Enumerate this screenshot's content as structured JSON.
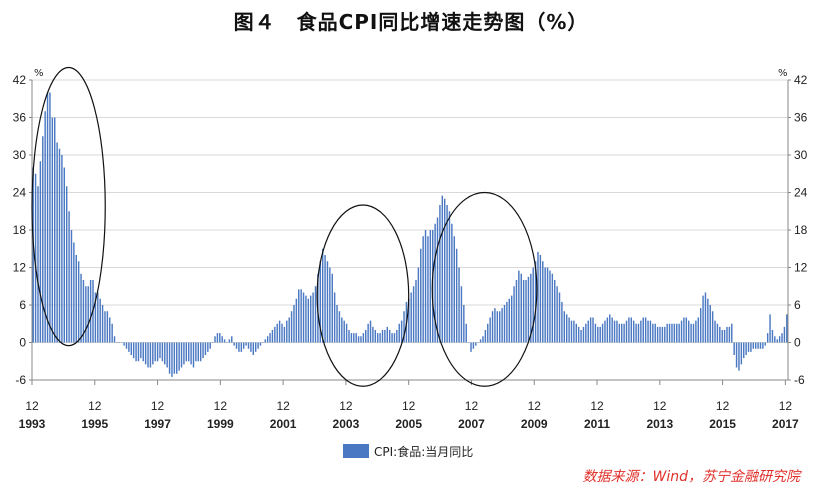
{
  "title": "图４　食品CPI同比增速走势图（%）",
  "source_note": "数据来源：Wind，苏宁金融研究院",
  "colors": {
    "bar": "#4a78c2",
    "axis": "#888888",
    "grid": "#d9d9d9",
    "ellipse": "#111111",
    "source": "#e0302a"
  },
  "chart_data": {
    "type": "bar",
    "unit_label": "%",
    "legend": [
      "CPI:食品:当月同比"
    ],
    "legend_position": "bottom-center",
    "ylim": [
      -6,
      42
    ],
    "y_ticks": [
      -6,
      0,
      6,
      12,
      18,
      24,
      30,
      36,
      42
    ],
    "x_ticks": [
      {
        "month": "12",
        "year": "1993"
      },
      {
        "month": "12",
        "year": "1995"
      },
      {
        "month": "12",
        "year": "1997"
      },
      {
        "month": "12",
        "year": "1999"
      },
      {
        "month": "12",
        "year": "2001"
      },
      {
        "month": "12",
        "year": "2003"
      },
      {
        "month": "12",
        "year": "2005"
      },
      {
        "month": "12",
        "year": "2007"
      },
      {
        "month": "12",
        "year": "2009"
      },
      {
        "month": "12",
        "year": "2011"
      },
      {
        "month": "12",
        "year": "2013"
      },
      {
        "month": "12",
        "year": "2015"
      },
      {
        "month": "12",
        "year": "2017"
      }
    ],
    "grid": "horizontal",
    "x_start": "1993-12",
    "x_end": "2018-01",
    "series": [
      {
        "name": "CPI:食品:当月同比",
        "values": [
          28,
          27,
          25,
          29,
          33,
          37,
          40,
          40,
          36,
          36,
          32,
          31,
          30,
          28,
          25,
          21,
          18,
          16,
          14,
          13,
          11,
          10,
          9,
          9,
          10,
          10,
          8,
          8,
          7,
          6,
          5,
          5,
          4,
          3,
          1,
          0,
          0,
          0,
          -0.5,
          -1,
          -1.5,
          -2,
          -2.5,
          -3,
          -3,
          -2.5,
          -3,
          -3.5,
          -4,
          -4,
          -3.5,
          -3,
          -3,
          -2.5,
          -3,
          -3.5,
          -4,
          -5,
          -5.5,
          -5,
          -5,
          -4.5,
          -4,
          -3.5,
          -3,
          -3,
          -3.5,
          -4,
          -3,
          -3,
          -3,
          -2.5,
          -2,
          -1.5,
          -1,
          0,
          1,
          1.5,
          1.5,
          1,
          0.5,
          0,
          0.5,
          1,
          -0.5,
          -1,
          -1.5,
          -1.5,
          -1,
          -0.5,
          -1,
          -1.5,
          -2,
          -1.5,
          -1,
          -0.5,
          0,
          0.5,
          1,
          1.5,
          2,
          2.5,
          3,
          3.5,
          3,
          2.5,
          3.5,
          4,
          5,
          6,
          7,
          8.5,
          8.5,
          8,
          7.5,
          7,
          7.5,
          8,
          9,
          11,
          13,
          15,
          14,
          13,
          12,
          11,
          8,
          6,
          5,
          4,
          3.5,
          3,
          2,
          1.5,
          1.5,
          1.5,
          1,
          1,
          1.5,
          2,
          3,
          3.5,
          2.5,
          2,
          1.5,
          1.5,
          2,
          2,
          2.5,
          2,
          1.5,
          1.5,
          2,
          3,
          3.5,
          5,
          6.5,
          7,
          8,
          9,
          10,
          12,
          15,
          17,
          18,
          17,
          18,
          18,
          19,
          20,
          22,
          23.5,
          23,
          22,
          21,
          19,
          17,
          15,
          12,
          9,
          6,
          3,
          0,
          -1.5,
          -1,
          -0.5,
          0,
          0.5,
          1,
          2,
          3,
          4,
          5,
          5.5,
          5,
          5,
          5.5,
          6,
          6.5,
          7,
          7.5,
          9,
          10,
          11.5,
          11,
          10,
          10,
          10.5,
          11,
          12,
          13,
          14.5,
          14,
          13,
          12,
          12,
          11.5,
          11,
          10,
          9,
          8,
          6.5,
          5,
          4.5,
          4,
          3.5,
          3.5,
          3,
          2.5,
          2,
          2.5,
          3,
          3.5,
          4,
          4,
          3,
          2.5,
          2.5,
          3,
          3.5,
          4,
          4.5,
          4,
          3.5,
          3.5,
          3,
          3,
          3,
          3.5,
          4,
          4,
          3.5,
          3,
          3,
          3.5,
          4,
          4,
          3.5,
          3.5,
          3,
          3,
          2.5,
          2.5,
          2.5,
          2.5,
          3,
          3,
          3,
          3,
          3,
          3,
          3.5,
          4,
          4,
          3.5,
          3,
          3,
          3.5,
          4,
          5.5,
          7.5,
          8,
          7,
          6,
          5,
          3.5,
          3,
          2.5,
          2,
          2,
          2.5,
          2.5,
          3,
          -2,
          -4,
          -4.5,
          -3.5,
          -2.5,
          -2,
          -1.5,
          -1.5,
          -1,
          -1,
          -1,
          -1,
          -1,
          -0.5,
          1.5,
          4.5,
          2,
          1,
          0.5,
          1,
          1.5,
          2.5,
          4.5
        ]
      }
    ],
    "annotations": [
      {
        "shape": "ellipse",
        "x_from": "1993-12",
        "x_to": "1996-04",
        "y_from": -0.5,
        "y_to": 44
      },
      {
        "shape": "ellipse",
        "x_from": "2003-01",
        "x_to": "2005-12",
        "y_from": -7,
        "y_to": 22
      },
      {
        "shape": "ellipse",
        "x_from": "2006-09",
        "x_to": "2010-01",
        "y_from": -7,
        "y_to": 24
      }
    ]
  }
}
